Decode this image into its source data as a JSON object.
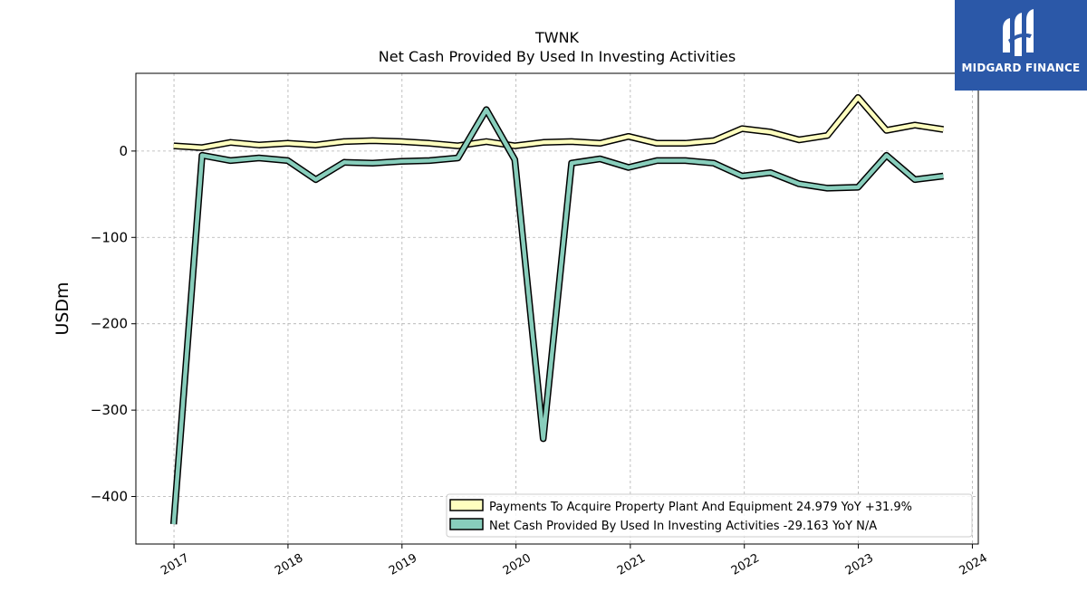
{
  "brand": {
    "name": "MIDGARD FINANCE",
    "background": "#2b58a8"
  },
  "chart_data": {
    "type": "line",
    "title": "TWNK",
    "subtitle": "Net Cash Provided By Used In Investing Activities",
    "xlabel": "",
    "ylabel": "USDm",
    "xlim": [
      "2016-09-01",
      "2024-01-20"
    ],
    "ylim": [
      -455,
      90
    ],
    "yticks": [
      0,
      -100,
      -200,
      -300,
      -400
    ],
    "ytick_labels": [
      "0",
      "−100",
      "−200",
      "−300",
      "−400"
    ],
    "xticks": [
      "2017-01-01",
      "2018-01-01",
      "2019-01-01",
      "2020-01-01",
      "2021-01-01",
      "2022-01-01",
      "2023-01-01",
      "2024-01-01"
    ],
    "xtick_labels": [
      "2017",
      "2018",
      "2019",
      "2020",
      "2021",
      "2022",
      "2023",
      "2024"
    ],
    "grid": true,
    "legend_position": "lower-right",
    "x": [
      "2016-12-31",
      "2017-04-01",
      "2017-07-01",
      "2017-09-30",
      "2017-12-31",
      "2018-03-31",
      "2018-06-30",
      "2018-09-29",
      "2018-12-29",
      "2019-03-30",
      "2019-06-29",
      "2019-09-28",
      "2019-12-28",
      "2020-03-28",
      "2020-06-27",
      "2020-09-26",
      "2020-12-26",
      "2021-03-27",
      "2021-06-26",
      "2021-09-25",
      "2021-12-25",
      "2022-03-26",
      "2022-06-25",
      "2022-09-24",
      "2022-12-31",
      "2023-04-01",
      "2023-07-01",
      "2023-09-30"
    ],
    "series": [
      {
        "name": "Payments To Acquire Property Plant And Equipment",
        "legend_label": "Payments To Acquire Property Plant And Equipment  24.979 YoY +31.9%",
        "color": "#ffffbf",
        "values": [
          6,
          4,
          10,
          7,
          9,
          7,
          11,
          12,
          11,
          9,
          6,
          11,
          6,
          10,
          11,
          9,
          17,
          9,
          9,
          12,
          26,
          22,
          13,
          18,
          62,
          24,
          30,
          25
        ]
      },
      {
        "name": "Net Cash Provided By Used In Investing Activities",
        "legend_label": "Net Cash Provided By Used In Investing Activities  -29.163 YoY N/A",
        "color": "#88cebc",
        "values": [
          -432,
          -5,
          -11,
          -8,
          -11,
          -33,
          -13,
          -14,
          -12,
          -11,
          -8,
          48,
          -10,
          -333,
          -14,
          -9,
          -19,
          -11,
          -11,
          -14,
          -29,
          -25,
          -38,
          -43,
          -42,
          -5,
          -33,
          -29
        ]
      }
    ]
  }
}
